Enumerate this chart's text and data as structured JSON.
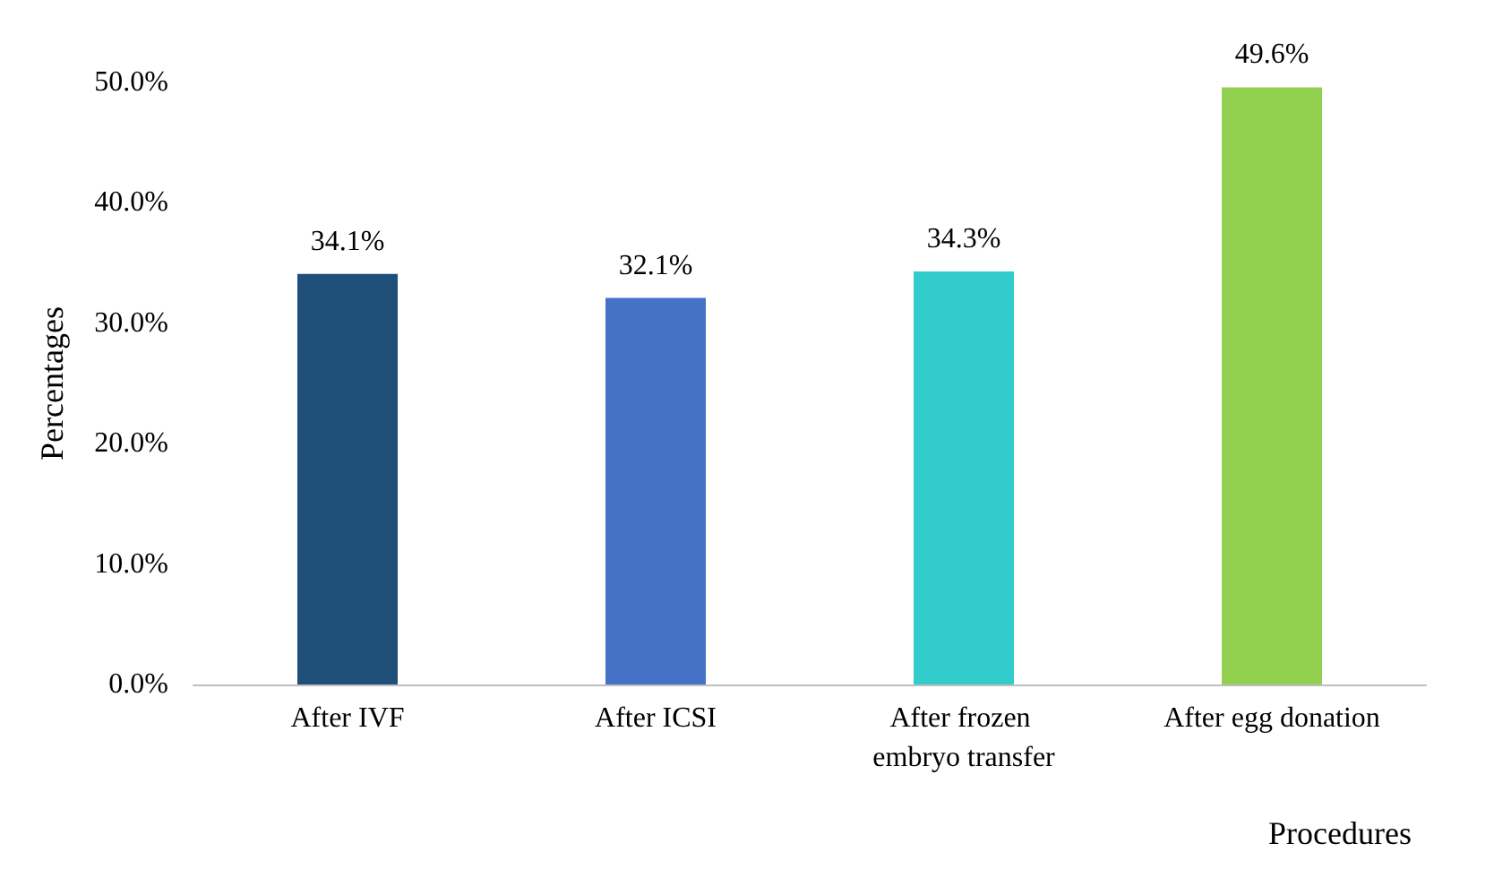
{
  "chart_data": {
    "type": "bar",
    "xlabel": "Procedures",
    "ylabel": "Percentages",
    "categories": [
      "After IVF",
      "After ICSI",
      "After frozen embryo transfer",
      "After egg donation"
    ],
    "values": [
      34.1,
      32.1,
      34.3,
      49.6
    ],
    "colors": [
      "#1f4e79",
      "#4472c4",
      "#33cccc",
      "#92d050"
    ],
    "value_labels": [
      "34.1%",
      "32.1%",
      "34.3%",
      "49.6%"
    ],
    "ylim": [
      0,
      50
    ],
    "yticks": [
      {
        "value": 0,
        "label": "0.0%"
      },
      {
        "value": 10,
        "label": "10.0%"
      },
      {
        "value": 20,
        "label": "20.0%"
      },
      {
        "value": 30,
        "label": "30.0%"
      },
      {
        "value": 40,
        "label": "40.0%"
      },
      {
        "value": 50,
        "label": "50.0%"
      }
    ],
    "grid": false
  }
}
